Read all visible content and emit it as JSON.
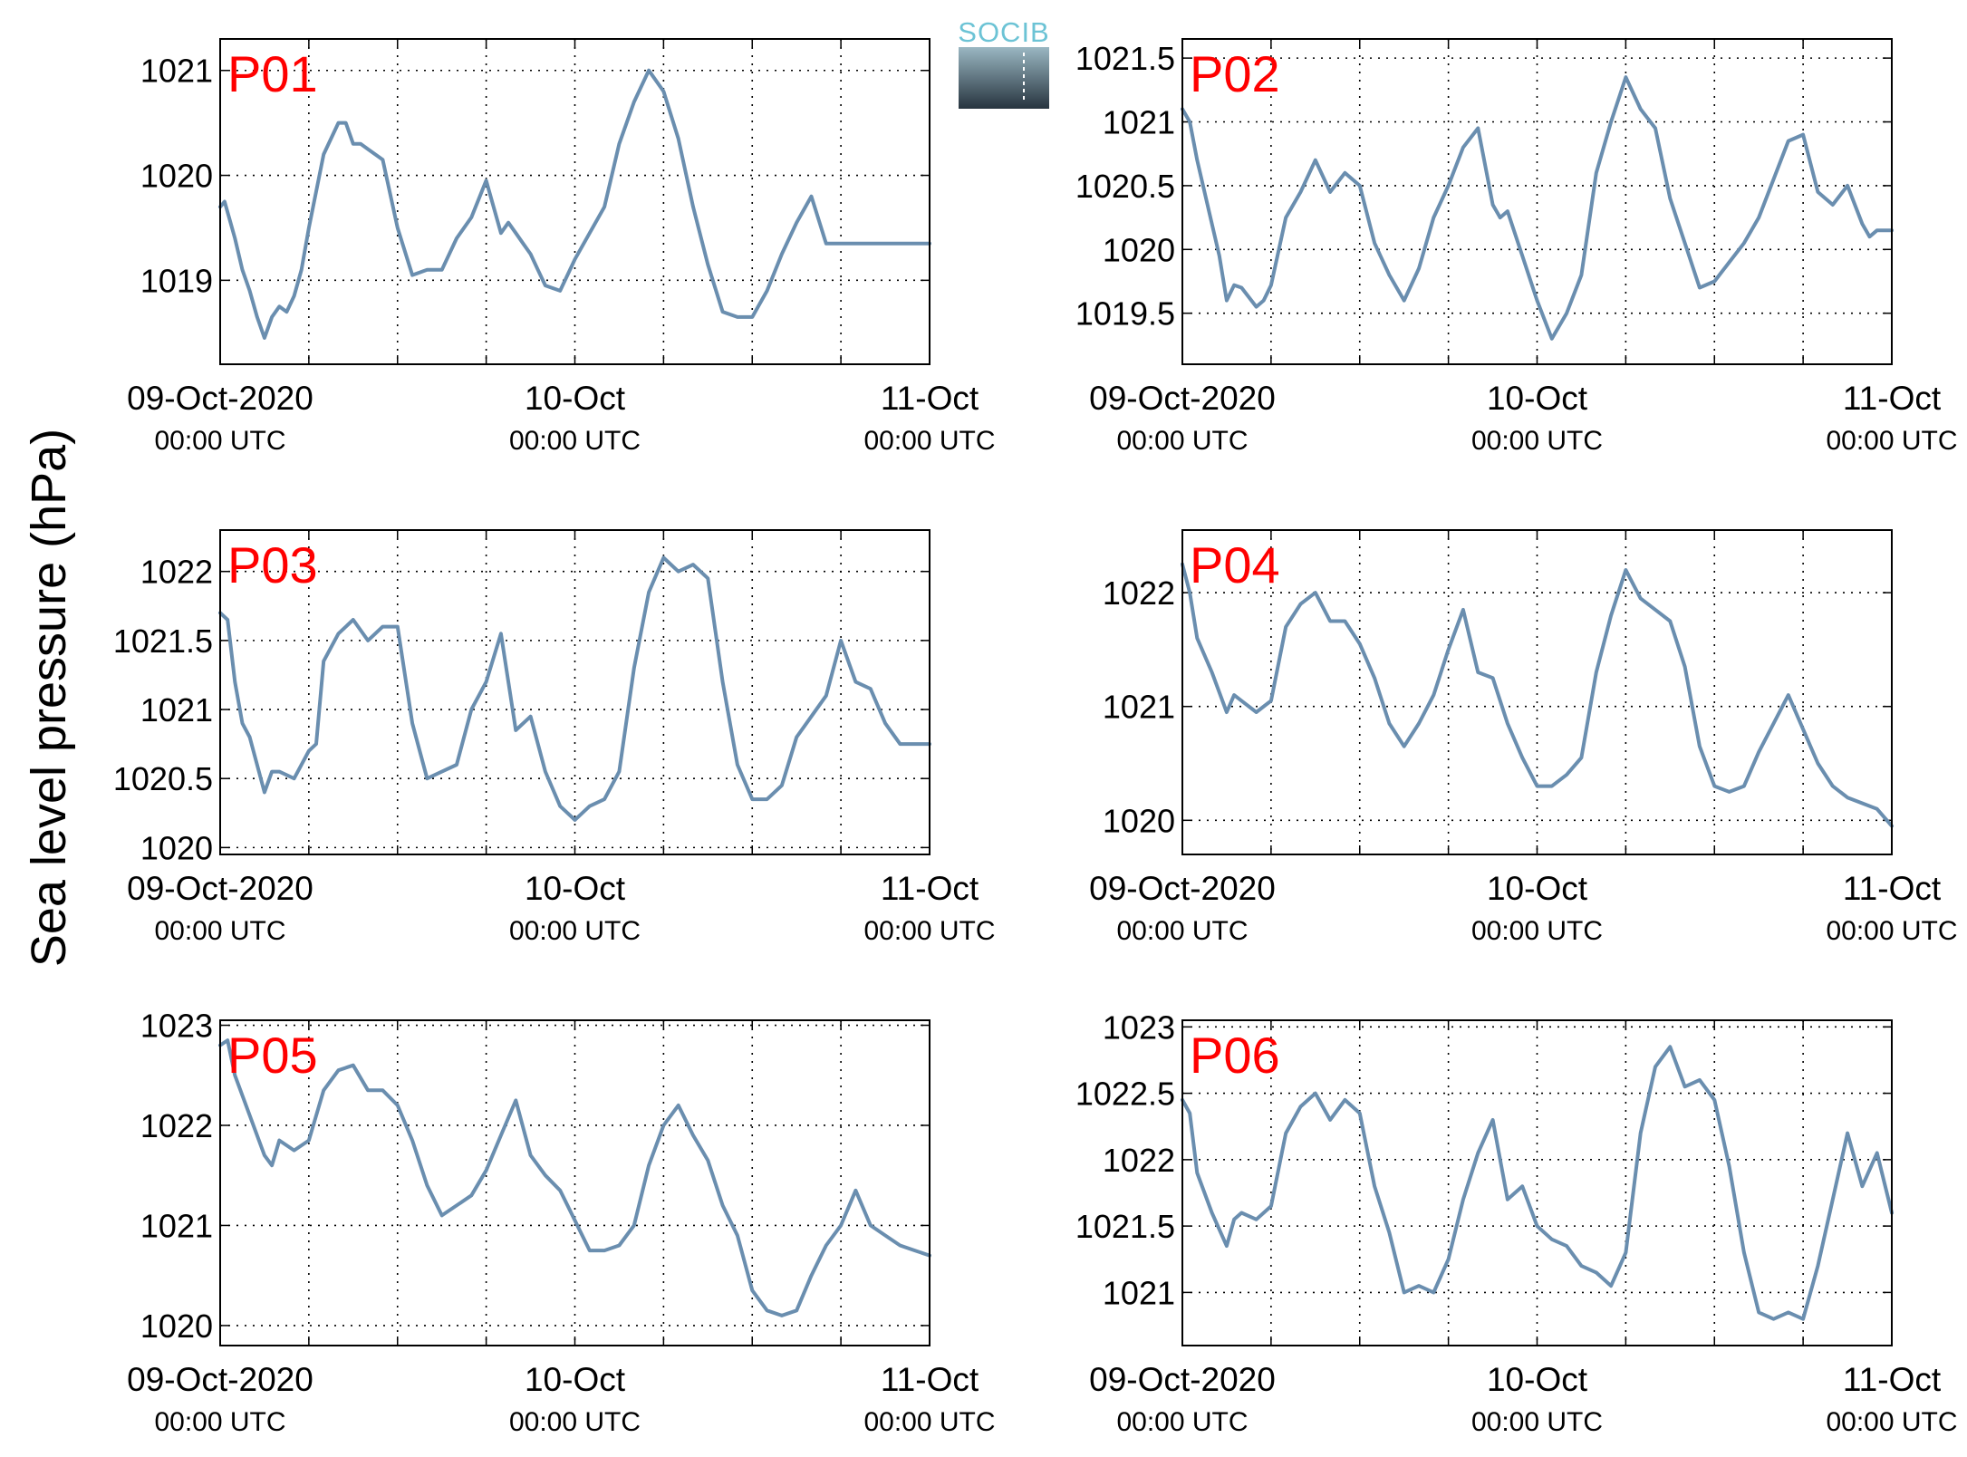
{
  "ylabel": "Sea level pressure (hPa)",
  "logo": {
    "text": "SOCIB"
  },
  "colors": {
    "line": "#6a8eaf",
    "panel_label": "#ff0000",
    "grid": "#000000"
  },
  "chart_data": [
    {
      "type": "line",
      "label": "P01",
      "ylim": [
        1018.2,
        1021.3
      ],
      "yticks": [
        1019,
        1020,
        1021
      ],
      "ytick_labels": [
        "1019",
        "1020",
        "1021"
      ],
      "xlim": [
        0,
        48
      ],
      "xtick_labels": [
        {
          "date": "09-Oct-2020",
          "time": "00:00 UTC"
        },
        {
          "date": "10-Oct",
          "time": "00:00 UTC"
        },
        {
          "date": "11-Oct",
          "time": "00:00 UTC"
        }
      ],
      "grid": true,
      "series": [
        {
          "x": [
            0,
            0.3,
            1,
            1.5,
            2,
            2.5,
            3,
            3.5,
            4,
            4.5,
            5,
            5.5,
            6,
            7,
            8,
            8.5,
            9,
            9.5,
            10,
            11,
            12,
            13,
            14,
            15,
            16,
            17,
            18,
            19,
            19.5,
            20,
            20.5,
            21,
            21.5,
            22,
            23,
            24,
            25,
            26,
            27,
            28,
            29,
            30,
            31,
            32,
            33,
            34,
            35,
            36,
            37,
            38,
            39,
            40,
            41,
            42,
            43,
            44,
            45,
            46,
            47,
            48
          ],
          "y": [
            1019.7,
            1019.75,
            1019.4,
            1019.1,
            1018.9,
            1018.65,
            1018.45,
            1018.65,
            1018.75,
            1018.7,
            1018.85,
            1019.1,
            1019.5,
            1020.2,
            1020.5,
            1020.5,
            1020.3,
            1020.3,
            1020.25,
            1020.15,
            1019.5,
            1019.05,
            1019.1,
            1019.1,
            1019.4,
            1019.6,
            1019.95,
            1019.45,
            1019.55,
            1019.45,
            1019.35,
            1019.25,
            1019.1,
            1018.95,
            1018.9,
            1019.2,
            1019.45,
            1019.7,
            1020.3,
            1020.7,
            1021.0,
            1020.8,
            1020.35,
            1019.7,
            1019.15,
            1018.7,
            1018.65,
            1018.65,
            1018.9,
            1019.25,
            1019.55,
            1019.8,
            1019.35,
            1019.35,
            1019.35,
            1019.35,
            1019.35,
            1019.35,
            1019.35,
            1019.35
          ]
        }
      ]
    },
    {
      "type": "line",
      "label": "P02",
      "ylim": [
        1019.1,
        1021.65
      ],
      "yticks": [
        1019.5,
        1020,
        1020.5,
        1021,
        1021.5
      ],
      "ytick_labels": [
        "1019.5",
        "1020",
        "1020.5",
        "1021",
        "1021.5"
      ],
      "xlim": [
        0,
        48
      ],
      "xtick_labels": [
        {
          "date": "09-Oct-2020",
          "time": "00:00 UTC"
        },
        {
          "date": "10-Oct",
          "time": "00:00 UTC"
        },
        {
          "date": "11-Oct",
          "time": "00:00 UTC"
        }
      ],
      "grid": true,
      "series": [
        {
          "x": [
            0,
            0.5,
            1,
            2,
            2.5,
            3,
            3.5,
            4,
            5,
            5.5,
            6,
            7,
            8,
            9,
            10,
            11,
            12,
            13,
            14,
            15,
            16,
            17,
            18,
            19,
            20,
            21,
            21.5,
            22,
            23,
            24,
            25,
            26,
            27,
            28,
            29,
            30,
            31,
            32,
            33,
            34,
            35,
            36,
            37,
            38,
            39,
            40,
            41,
            42,
            43,
            44,
            45,
            46,
            46.5,
            47,
            48
          ],
          "y": [
            1021.1,
            1021.0,
            1020.7,
            1020.2,
            1019.95,
            1019.6,
            1019.72,
            1019.7,
            1019.55,
            1019.6,
            1019.72,
            1020.25,
            1020.45,
            1020.7,
            1020.45,
            1020.6,
            1020.5,
            1020.05,
            1019.8,
            1019.6,
            1019.85,
            1020.25,
            1020.5,
            1020.8,
            1020.95,
            1020.35,
            1020.25,
            1020.3,
            1019.95,
            1019.6,
            1019.3,
            1019.5,
            1019.8,
            1020.6,
            1021.0,
            1021.35,
            1021.1,
            1020.95,
            1020.4,
            1020.05,
            1019.7,
            1019.75,
            1019.9,
            1020.05,
            1020.25,
            1020.55,
            1020.85,
            1020.9,
            1020.45,
            1020.35,
            1020.5,
            1020.2,
            1020.1,
            1020.15,
            1020.15
          ]
        }
      ]
    },
    {
      "type": "line",
      "label": "P03",
      "ylim": [
        1019.95,
        1022.3
      ],
      "yticks": [
        1020,
        1020.5,
        1021,
        1021.5,
        1022
      ],
      "ytick_labels": [
        "1020",
        "1020.5",
        "1021",
        "1021.5",
        "1022"
      ],
      "xlim": [
        0,
        48
      ],
      "xtick_labels": [
        {
          "date": "09-Oct-2020",
          "time": "00:00 UTC"
        },
        {
          "date": "10-Oct",
          "time": "00:00 UTC"
        },
        {
          "date": "11-Oct",
          "time": "00:00 UTC"
        }
      ],
      "grid": true,
      "series": [
        {
          "x": [
            0,
            0.5,
            1,
            1.5,
            2,
            3,
            3.5,
            4,
            5,
            6,
            6.5,
            7,
            8,
            9,
            10,
            11,
            12,
            13,
            14,
            15,
            16,
            17,
            18,
            19,
            20,
            21,
            22,
            23,
            24,
            25,
            26,
            27,
            28,
            29,
            30,
            31,
            32,
            33,
            34,
            35,
            36,
            37,
            38,
            39,
            40,
            41,
            42,
            43,
            44,
            45,
            46,
            47,
            47.5,
            48
          ],
          "y": [
            1021.7,
            1021.65,
            1021.2,
            1020.9,
            1020.8,
            1020.4,
            1020.55,
            1020.55,
            1020.5,
            1020.7,
            1020.75,
            1021.35,
            1021.55,
            1021.65,
            1021.5,
            1021.6,
            1021.6,
            1020.9,
            1020.5,
            1020.55,
            1020.6,
            1021.0,
            1021.2,
            1021.55,
            1020.85,
            1020.95,
            1020.55,
            1020.3,
            1020.2,
            1020.3,
            1020.35,
            1020.55,
            1021.3,
            1021.85,
            1022.1,
            1022.0,
            1022.05,
            1021.95,
            1021.2,
            1020.6,
            1020.35,
            1020.35,
            1020.45,
            1020.8,
            1020.95,
            1021.1,
            1021.5,
            1021.2,
            1021.15,
            1020.9,
            1020.75,
            1020.75,
            1020.75,
            1020.75
          ]
        }
      ]
    },
    {
      "type": "line",
      "label": "P04",
      "ylim": [
        1019.7,
        1022.55
      ],
      "yticks": [
        1020,
        1021,
        1022
      ],
      "ytick_labels": [
        "1020",
        "1021",
        "1022"
      ],
      "xlim": [
        0,
        48
      ],
      "xtick_labels": [
        {
          "date": "09-Oct-2020",
          "time": "00:00 UTC"
        },
        {
          "date": "10-Oct",
          "time": "00:00 UTC"
        },
        {
          "date": "11-Oct",
          "time": "00:00 UTC"
        }
      ],
      "grid": true,
      "series": [
        {
          "x": [
            0,
            0.5,
            1,
            2,
            3,
            3.5,
            4,
            5,
            6,
            7,
            8,
            9,
            10,
            11,
            12,
            13,
            14,
            15,
            16,
            17,
            18,
            19,
            20,
            21,
            22,
            23,
            24,
            25,
            26,
            27,
            28,
            29,
            30,
            31,
            32,
            33,
            34,
            35,
            36,
            37,
            38,
            39,
            40,
            41,
            42,
            43,
            44,
            45,
            46,
            47,
            48
          ],
          "y": [
            1022.25,
            1022.0,
            1021.6,
            1021.3,
            1020.95,
            1021.1,
            1021.05,
            1020.95,
            1021.05,
            1021.7,
            1021.9,
            1022.0,
            1021.75,
            1021.75,
            1021.55,
            1021.25,
            1020.85,
            1020.65,
            1020.85,
            1021.1,
            1021.5,
            1021.85,
            1021.3,
            1021.25,
            1020.85,
            1020.55,
            1020.3,
            1020.3,
            1020.4,
            1020.55,
            1021.3,
            1021.8,
            1022.2,
            1021.95,
            1021.85,
            1021.75,
            1021.35,
            1020.65,
            1020.3,
            1020.25,
            1020.3,
            1020.6,
            1020.85,
            1021.1,
            1020.8,
            1020.5,
            1020.3,
            1020.2,
            1020.15,
            1020.1,
            1019.95
          ]
        }
      ]
    },
    {
      "type": "line",
      "label": "P05",
      "ylim": [
        1019.8,
        1023.05
      ],
      "yticks": [
        1020,
        1021,
        1022,
        1023
      ],
      "ytick_labels": [
        "1020",
        "1021",
        "1022",
        "1023"
      ],
      "xlim": [
        0,
        48
      ],
      "xtick_labels": [
        {
          "date": "09-Oct-2020",
          "time": "00:00 UTC"
        },
        {
          "date": "10-Oct",
          "time": "00:00 UTC"
        },
        {
          "date": "11-Oct",
          "time": "00:00 UTC"
        }
      ],
      "grid": true,
      "series": [
        {
          "x": [
            0,
            0.5,
            1,
            2,
            3,
            3.5,
            4,
            5,
            6,
            7,
            8,
            9,
            10,
            11,
            12,
            13,
            14,
            15,
            16,
            17,
            18,
            19,
            20,
            21,
            22,
            23,
            24,
            25,
            26,
            27,
            28,
            29,
            30,
            31,
            32,
            33,
            34,
            35,
            36,
            37,
            38,
            39,
            40,
            41,
            42,
            43,
            44,
            45,
            46,
            47,
            48
          ],
          "y": [
            1022.8,
            1022.85,
            1022.5,
            1022.1,
            1021.7,
            1021.6,
            1021.85,
            1021.75,
            1021.85,
            1022.35,
            1022.55,
            1022.6,
            1022.35,
            1022.35,
            1022.2,
            1021.85,
            1021.4,
            1021.1,
            1021.2,
            1021.3,
            1021.55,
            1021.9,
            1022.25,
            1021.7,
            1021.5,
            1021.35,
            1021.05,
            1020.75,
            1020.75,
            1020.8,
            1021.0,
            1021.6,
            1022.0,
            1022.2,
            1021.9,
            1021.65,
            1021.2,
            1020.9,
            1020.35,
            1020.15,
            1020.1,
            1020.15,
            1020.5,
            1020.8,
            1021.0,
            1021.35,
            1021.0,
            1020.9,
            1020.8,
            1020.75,
            1020.7
          ]
        }
      ]
    },
    {
      "type": "line",
      "label": "P06",
      "ylim": [
        1020.6,
        1023.05
      ],
      "yticks": [
        1021,
        1021.5,
        1022,
        1022.5,
        1023
      ],
      "ytick_labels": [
        "1021",
        "1021.5",
        "1022",
        "1022.5",
        "1023"
      ],
      "xlim": [
        0,
        48
      ],
      "xtick_labels": [
        {
          "date": "09-Oct-2020",
          "time": "00:00 UTC"
        },
        {
          "date": "10-Oct",
          "time": "00:00 UTC"
        },
        {
          "date": "11-Oct",
          "time": "00:00 UTC"
        }
      ],
      "grid": true,
      "series": [
        {
          "x": [
            0,
            0.5,
            1,
            2,
            3,
            3.5,
            4,
            5,
            6,
            7,
            8,
            9,
            10,
            11,
            12,
            13,
            14,
            15,
            16,
            17,
            18,
            19,
            20,
            21,
            22,
            23,
            24,
            25,
            26,
            27,
            28,
            29,
            30,
            31,
            32,
            33,
            34,
            35,
            36,
            37,
            38,
            39,
            40,
            41,
            42,
            43,
            44,
            45,
            46,
            47,
            48
          ],
          "y": [
            1022.45,
            1022.35,
            1021.9,
            1021.6,
            1021.35,
            1021.55,
            1021.6,
            1021.55,
            1021.65,
            1022.2,
            1022.4,
            1022.5,
            1022.3,
            1022.45,
            1022.35,
            1021.8,
            1021.45,
            1021.0,
            1021.05,
            1021.0,
            1021.25,
            1021.7,
            1022.05,
            1022.3,
            1021.7,
            1021.8,
            1021.5,
            1021.4,
            1021.35,
            1021.2,
            1021.15,
            1021.05,
            1021.3,
            1022.2,
            1022.7,
            1022.85,
            1022.55,
            1022.6,
            1022.45,
            1021.95,
            1021.3,
            1020.85,
            1020.8,
            1020.85,
            1020.8,
            1021.2,
            1021.7,
            1022.2,
            1021.8,
            1022.05,
            1021.6
          ]
        }
      ]
    }
  ]
}
